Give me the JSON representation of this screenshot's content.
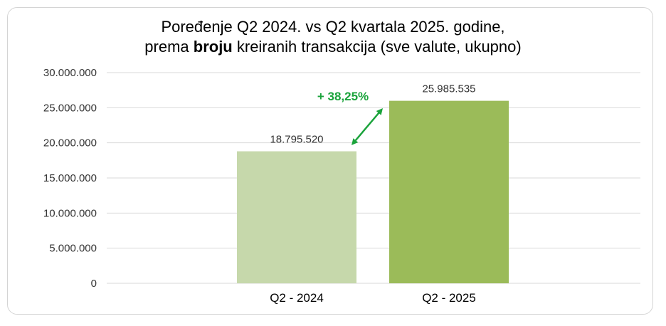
{
  "chart_data": {
    "type": "bar",
    "title_line1": "Poređenje Q2 2024. vs Q2 kvartala 2025. godine,",
    "title_line2_pre": "prema ",
    "title_line2_bold": "broju",
    "title_line2_post": " kreiranih transakcija (sve valute, ukupno)",
    "categories": [
      "Q2 - 2024",
      "Q2 - 2025"
    ],
    "values": [
      18795520,
      25985535
    ],
    "value_labels": [
      "18.795.520",
      "25.985.535"
    ],
    "bar_colors": [
      "#c6d8ab",
      "#9bbb59"
    ],
    "ylim": [
      0,
      30000000
    ],
    "yticks": [
      0,
      5000000,
      10000000,
      15000000,
      20000000,
      25000000,
      30000000
    ],
    "ytick_labels": [
      "0",
      "5.000.000",
      "10.000.000",
      "15.000.000",
      "20.000.000",
      "25.000.000",
      "30.000.000"
    ],
    "grid": true,
    "annotation": {
      "text": "+ 38,25%",
      "color": "#1aa33b"
    },
    "gridline_color": "#d9d9d9"
  }
}
